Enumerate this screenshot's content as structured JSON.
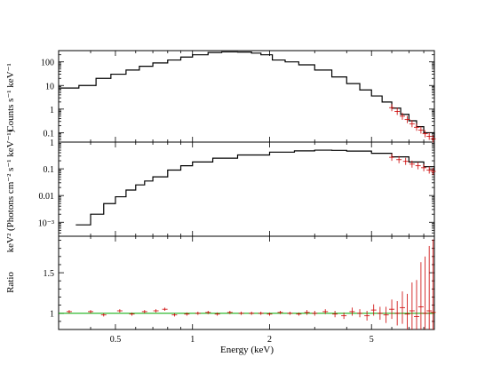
{
  "chart_data": [
    {
      "type": "line",
      "panel": "counts",
      "ylabel": "Counts s⁻¹ keV⁻¹",
      "yscale": "log",
      "xscale": "log",
      "xlim": [
        0.3,
        8.8
      ],
      "ylim": [
        0.04,
        300
      ],
      "yticks": [
        {
          "v": 0.1,
          "label": "0.1"
        },
        {
          "v": 1,
          "label": "1"
        },
        {
          "v": 10,
          "label": "10"
        },
        {
          "v": 100,
          "label": "100"
        }
      ],
      "series": [
        {
          "role": "model",
          "color": "#000000",
          "x": [
            0.3,
            0.36,
            0.42,
            0.48,
            0.55,
            0.62,
            0.7,
            0.8,
            0.9,
            1.0,
            1.15,
            1.3,
            1.5,
            1.7,
            1.85,
            2.05,
            2.3,
            2.6,
            3.0,
            3.5,
            4.0,
            4.5,
            5.0,
            5.5,
            6.0,
            6.5,
            7.0,
            7.5,
            8.0,
            8.8
          ],
          "y": [
            7.8,
            10,
            20,
            30,
            45,
            65,
            90,
            120,
            160,
            200,
            250,
            265,
            260,
            235,
            200,
            120,
            100,
            75,
            45,
            23,
            12,
            6.5,
            3.6,
            2.0,
            1.1,
            0.6,
            0.32,
            0.18,
            0.1,
            0.06
          ]
        },
        {
          "role": "data",
          "color": "#cc0000",
          "x": [
            6.0,
            6.3,
            6.6,
            6.9,
            7.2,
            7.5,
            7.8,
            8.1,
            8.4,
            8.7
          ],
          "y": [
            1.15,
            0.8,
            0.5,
            0.36,
            0.24,
            0.17,
            0.13,
            0.09,
            0.07,
            0.055
          ]
        }
      ]
    },
    {
      "type": "line",
      "panel": "unfolded",
      "ylabel": "keV² (Photons cm⁻² s⁻¹ keV⁻¹)",
      "yscale": "log",
      "xscale": "log",
      "xlim": [
        0.3,
        8.8
      ],
      "ylim": [
        0.0003,
        1
      ],
      "yticks": [
        {
          "v": 0.001,
          "label": "10⁻³"
        },
        {
          "v": 0.01,
          "label": "0.01"
        },
        {
          "v": 0.1,
          "label": "0.1"
        },
        {
          "v": 1,
          "label": "1"
        }
      ],
      "series": [
        {
          "role": "model",
          "color": "#000000",
          "x": [
            0.35,
            0.4,
            0.45,
            0.5,
            0.55,
            0.6,
            0.65,
            0.7,
            0.8,
            0.9,
            1.0,
            1.2,
            1.5,
            2.0,
            2.5,
            3.0,
            3.5,
            4.0,
            5.0,
            6.0,
            7.0,
            8.0,
            8.8
          ],
          "y": [
            0.0008,
            0.002,
            0.005,
            0.009,
            0.016,
            0.025,
            0.035,
            0.05,
            0.09,
            0.13,
            0.18,
            0.25,
            0.33,
            0.42,
            0.47,
            0.5,
            0.49,
            0.46,
            0.38,
            0.28,
            0.18,
            0.12,
            0.08
          ]
        },
        {
          "role": "data",
          "color": "#cc0000",
          "x": [
            6.0,
            6.4,
            6.8,
            7.2,
            7.6,
            8.0,
            8.4,
            8.7
          ],
          "y": [
            0.27,
            0.22,
            0.19,
            0.15,
            0.13,
            0.11,
            0.09,
            0.08
          ]
        }
      ]
    },
    {
      "type": "scatter",
      "panel": "ratio",
      "xlabel": "Energy (keV)",
      "ylabel": "Ratio",
      "xscale": "log",
      "xlim": [
        0.3,
        8.8
      ],
      "ylim": [
        0.8,
        1.95
      ],
      "yticks": [
        {
          "v": 1,
          "label": "1"
        },
        {
          "v": 1.5,
          "label": "1.5"
        }
      ],
      "xticks": [
        {
          "v": 0.5,
          "label": "0.5"
        },
        {
          "v": 1,
          "label": "1"
        },
        {
          "v": 2,
          "label": "2"
        },
        {
          "v": 5,
          "label": "5"
        }
      ],
      "reference_line": {
        "y": 1,
        "color": "#00aa00"
      },
      "points": {
        "color": "#cc0000",
        "x": [
          0.33,
          0.4,
          0.45,
          0.52,
          0.58,
          0.65,
          0.72,
          0.78,
          0.85,
          0.95,
          1.05,
          1.15,
          1.25,
          1.4,
          1.55,
          1.7,
          1.85,
          2.0,
          2.2,
          2.4,
          2.6,
          2.8,
          3.0,
          3.3,
          3.6,
          3.9,
          4.2,
          4.5,
          4.8,
          5.1,
          5.4,
          5.7,
          6.0,
          6.3,
          6.6,
          6.9,
          7.2,
          7.5,
          7.8,
          8.1,
          8.4,
          8.7
        ],
        "y": [
          1.02,
          1.02,
          0.98,
          1.03,
          0.99,
          1.02,
          1.03,
          1.05,
          0.98,
          0.99,
          1.0,
          1.01,
          0.99,
          1.01,
          1.0,
          1.0,
          1.0,
          0.99,
          1.01,
          1.0,
          0.99,
          1.01,
          1.0,
          1.02,
          0.99,
          0.97,
          1.02,
          1.0,
          0.97,
          1.04,
          1.0,
          0.98,
          1.05,
          1.0,
          1.07,
          0.99,
          1.03,
          0.96,
          1.08,
          1.0,
          1.03,
          1.01
        ],
        "err": [
          0.02,
          0.02,
          0.02,
          0.02,
          0.02,
          0.02,
          0.02,
          0.02,
          0.02,
          0.02,
          0.02,
          0.02,
          0.02,
          0.02,
          0.02,
          0.02,
          0.02,
          0.02,
          0.02,
          0.02,
          0.02,
          0.03,
          0.03,
          0.03,
          0.04,
          0.04,
          0.05,
          0.05,
          0.06,
          0.07,
          0.08,
          0.1,
          0.12,
          0.15,
          0.2,
          0.25,
          0.35,
          0.45,
          0.55,
          0.7,
          0.8,
          0.9
        ]
      }
    }
  ]
}
